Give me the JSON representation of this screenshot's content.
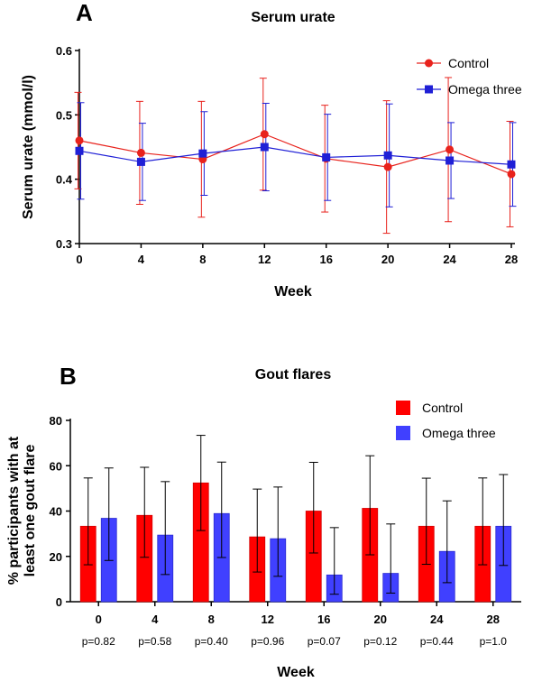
{
  "chart_data": [
    {
      "panel": "A",
      "type": "line",
      "title": "Serum urate",
      "xlabel": "Week",
      "ylabel": "Serum urate (mmol/l)",
      "x": [
        0,
        4,
        8,
        12,
        16,
        20,
        24,
        28
      ],
      "x_tick_labels": [
        "0",
        "4",
        "8",
        "12",
        "16",
        "20",
        "24",
        "28"
      ],
      "xlim": [
        0,
        28
      ],
      "ylim": [
        0.3,
        0.6
      ],
      "y_ticks": [
        0.3,
        0.4,
        0.5,
        0.6
      ],
      "y_tick_labels": [
        "0.3",
        "0.4",
        "0.5",
        "0.6"
      ],
      "legend_position": "top-right",
      "series": [
        {
          "name": "Control",
          "color": "#e8221c",
          "marker": "circle",
          "values": [
            0.46,
            0.441,
            0.431,
            0.47,
            0.432,
            0.419,
            0.446,
            0.408
          ],
          "error": [
            0.075,
            0.08,
            0.09,
            0.087,
            0.083,
            0.103,
            0.112,
            0.082
          ]
        },
        {
          "name": "Omega three",
          "color": "#1f1fd6",
          "marker": "square",
          "values": [
            0.444,
            0.427,
            0.44,
            0.45,
            0.434,
            0.437,
            0.429,
            0.423
          ],
          "error": [
            0.075,
            0.06,
            0.065,
            0.068,
            0.067,
            0.08,
            0.059,
            0.065
          ]
        }
      ]
    },
    {
      "panel": "B",
      "type": "bar",
      "title": "Gout flares",
      "xlabel": "Week",
      "ylabel_line1": "% participants with at",
      "ylabel_line2": "least one gout flare",
      "categories": [
        "0",
        "4",
        "8",
        "12",
        "16",
        "20",
        "24",
        "28"
      ],
      "ylim": [
        0,
        80
      ],
      "y_ticks": [
        0,
        20,
        40,
        60,
        80
      ],
      "y_tick_labels": [
        "0",
        "20",
        "40",
        "60",
        "80"
      ],
      "legend_position": "top-right",
      "p_values": [
        "p=0.82",
        "p=0.58",
        "p=0.40",
        "p=0.96",
        "p=0.07",
        "p=0.12",
        "p=0.44",
        "p=1.0"
      ],
      "series": [
        {
          "name": "Control",
          "color": "#ff0000",
          "values": [
            33.3,
            38.1,
            52.4,
            28.6,
            40.0,
            41.2,
            33.3,
            33.3
          ],
          "error_low": [
            17.0,
            18.5,
            21.0,
            15.5,
            18.5,
            20.5,
            16.8,
            17.0
          ],
          "error_high": [
            21.3,
            21.2,
            21.0,
            21.1,
            21.5,
            23.2,
            21.2,
            21.3
          ]
        },
        {
          "name": "Omega three",
          "color": "#4040ff",
          "values": [
            36.8,
            29.4,
            38.9,
            27.8,
            11.8,
            12.5,
            22.2,
            33.3
          ],
          "error_low": [
            18.6,
            17.4,
            19.4,
            16.6,
            8.5,
            8.7,
            13.8,
            17.3
          ],
          "error_high": [
            22.2,
            23.6,
            22.7,
            22.8,
            20.9,
            21.8,
            22.3,
            22.8
          ]
        }
      ]
    }
  ]
}
